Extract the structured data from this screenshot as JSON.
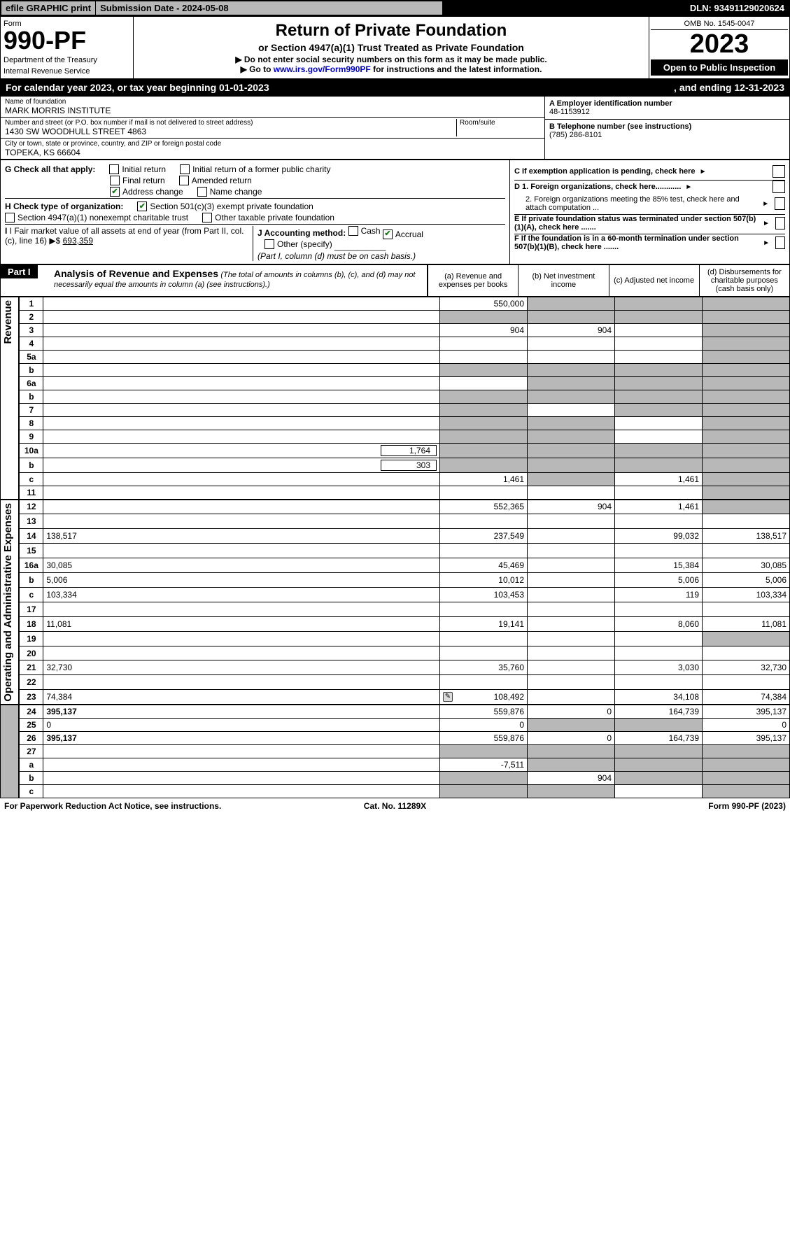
{
  "topbar": {
    "efile": "efile GRAPHIC print",
    "submission": "Submission Date - 2024-05-08",
    "dln": "DLN: 93491129020624"
  },
  "header": {
    "form_word": "Form",
    "form_no": "990-PF",
    "dept": "Department of the Treasury",
    "irs": "Internal Revenue Service",
    "title": "Return of Private Foundation",
    "subtitle1": "or Section 4947(a)(1) Trust Treated as Private Foundation",
    "subtitle2a": "▶ Do not enter social security numbers on this form as it may be made public.",
    "subtitle2b": "▶ Go to ",
    "subtitle2link": "www.irs.gov/Form990PF",
    "subtitle2c": " for instructions and the latest information.",
    "omb": "OMB No. 1545-0047",
    "year": "2023",
    "openpub": "Open to Public Inspection"
  },
  "calyear": {
    "left": "For calendar year 2023, or tax year beginning 01-01-2023",
    "right": ", and ending 12-31-2023"
  },
  "name": {
    "foundation_hdr": "Name of foundation",
    "foundation": "MARK MORRIS INSTITUTE",
    "street_hdr": "Number and street (or P.O. box number if mail is not delivered to street address)",
    "street": "1430 SW WOODHULL STREET 4863",
    "room_hdr": "Room/suite",
    "city_hdr": "City or town, state or province, country, and ZIP or foreign postal code",
    "city": "TOPEKA, KS  66604"
  },
  "right_info": {
    "a_lbl": "A Employer identification number",
    "a_val": "48-1153912",
    "b_lbl": "B Telephone number (see instructions)",
    "b_val": "(785) 286-8101",
    "c_lbl": "C If exemption application is pending, check here",
    "d1": "D 1. Foreign organizations, check here............",
    "d2": "2. Foreign organizations meeting the 85% test, check here and attach computation ...",
    "e": "E  If private foundation status was terminated under section 507(b)(1)(A), check here .......",
    "f": "F  If the foundation is in a 60-month termination under section 507(b)(1)(B), check here .......",
    "g_lbl": "G Check all that apply:",
    "g_opts": [
      "Initial return",
      "Initial return of a former public charity",
      "Final return",
      "Amended return",
      "Address change",
      "Name change"
    ],
    "h_lbl": "H Check type of organization:",
    "h_opts": [
      "Section 501(c)(3) exempt private foundation",
      "Section 4947(a)(1) nonexempt charitable trust",
      "Other taxable private foundation"
    ],
    "i_lbl": "I Fair market value of all assets at end of year (from Part II, col. (c), line 16)",
    "i_val": "693,359",
    "j_lbl": "J Accounting method:",
    "j_opts": [
      "Cash",
      "Accrual",
      "Other (specify)"
    ],
    "j_note": "(Part I, column (d) must be on cash basis.)"
  },
  "part1_hdr": {
    "part": "Part I",
    "title": "Analysis of Revenue and Expenses",
    "sub": "(The total of amounts in columns (b), (c), and (d) may not necessarily equal the amounts in column (a) (see instructions).)",
    "cola": "(a)  Revenue and expenses per books",
    "colb": "(b)  Net investment income",
    "colc": "(c)  Adjusted net income",
    "cold": "(d)  Disbursements for charitable purposes (cash basis only)"
  },
  "side_labels": {
    "rev": "Revenue",
    "exp": "Operating and Administrative Expenses"
  },
  "rows": [
    {
      "n": "1",
      "d": "",
      "a": "550,000",
      "b": "",
      "c": "",
      "shade_b": true,
      "shade_c": true,
      "shade_d": true
    },
    {
      "n": "2",
      "d": "",
      "a": "",
      "b": "",
      "c": "",
      "shade_a": true,
      "shade_b": true,
      "shade_c": true,
      "shade_d": true
    },
    {
      "n": "3",
      "d": "",
      "a": "904",
      "b": "904",
      "c": "",
      "shade_d": true
    },
    {
      "n": "4",
      "d": "",
      "a": "",
      "b": "",
      "c": "",
      "shade_d": true
    },
    {
      "n": "5a",
      "d": "",
      "a": "",
      "b": "",
      "c": "",
      "shade_d": true
    },
    {
      "n": "b",
      "d": "",
      "a": "",
      "b": "",
      "c": "",
      "shade_a": true,
      "shade_b": true,
      "shade_c": true,
      "shade_d": true
    },
    {
      "n": "6a",
      "d": "",
      "a": "",
      "b": "",
      "c": "",
      "shade_b": true,
      "shade_c": true,
      "shade_d": true
    },
    {
      "n": "b",
      "d": "",
      "a": "",
      "b": "",
      "c": "",
      "shade_a": true,
      "shade_b": true,
      "shade_c": true,
      "shade_d": true
    },
    {
      "n": "7",
      "d": "",
      "a": "",
      "b": "",
      "c": "",
      "shade_a": true,
      "shade_c": true,
      "shade_d": true
    },
    {
      "n": "8",
      "d": "",
      "a": "",
      "b": "",
      "c": "",
      "shade_a": true,
      "shade_b": true,
      "shade_d": true
    },
    {
      "n": "9",
      "d": "",
      "a": "",
      "b": "",
      "c": "",
      "shade_a": true,
      "shade_b": true,
      "shade_d": true
    },
    {
      "n": "10a",
      "d": "",
      "a": "",
      "b": "",
      "c": "",
      "ext": "1,764",
      "shade_a": true,
      "shade_b": true,
      "shade_c": true,
      "shade_d": true
    },
    {
      "n": "b",
      "d": "",
      "a": "",
      "b": "",
      "c": "",
      "ext": "303",
      "shade_a": true,
      "shade_b": true,
      "shade_c": true,
      "shade_d": true
    },
    {
      "n": "c",
      "d": "",
      "a": "1,461",
      "b": "",
      "c": "1,461",
      "shade_b": true,
      "shade_d": true
    },
    {
      "n": "11",
      "d": "",
      "a": "",
      "b": "",
      "c": "",
      "shade_d": true
    },
    {
      "n": "12",
      "d": "",
      "a": "552,365",
      "b": "904",
      "c": "1,461",
      "bold": true,
      "shade_d": true
    },
    {
      "n": "13",
      "d": "",
      "a": "",
      "b": "",
      "c": ""
    },
    {
      "n": "14",
      "d": "138,517",
      "a": "237,549",
      "b": "",
      "c": "99,032"
    },
    {
      "n": "15",
      "d": "",
      "a": "",
      "b": "",
      "c": ""
    },
    {
      "n": "16a",
      "d": "30,085",
      "a": "45,469",
      "b": "",
      "c": "15,384"
    },
    {
      "n": "b",
      "d": "5,006",
      "a": "10,012",
      "b": "",
      "c": "5,006"
    },
    {
      "n": "c",
      "d": "103,334",
      "a": "103,453",
      "b": "",
      "c": "119"
    },
    {
      "n": "17",
      "d": "",
      "a": "",
      "b": "",
      "c": ""
    },
    {
      "n": "18",
      "d": "11,081",
      "a": "19,141",
      "b": "",
      "c": "8,060"
    },
    {
      "n": "19",
      "d": "",
      "a": "",
      "b": "",
      "c": "",
      "shade_d": true
    },
    {
      "n": "20",
      "d": "",
      "a": "",
      "b": "",
      "c": ""
    },
    {
      "n": "21",
      "d": "32,730",
      "a": "35,760",
      "b": "",
      "c": "3,030"
    },
    {
      "n": "22",
      "d": "",
      "a": "",
      "b": "",
      "c": ""
    },
    {
      "n": "23",
      "d": "74,384",
      "a": "108,492",
      "b": "",
      "c": "34,108",
      "icon": true
    },
    {
      "n": "24",
      "d": "395,137",
      "a": "559,876",
      "b": "0",
      "c": "164,739",
      "bold": true
    },
    {
      "n": "25",
      "d": "0",
      "a": "0",
      "b": "",
      "c": "",
      "shade_b": true,
      "shade_c": true
    },
    {
      "n": "26",
      "d": "395,137",
      "a": "559,876",
      "b": "0",
      "c": "164,739",
      "bold": true
    },
    {
      "n": "27",
      "d": "",
      "a": "",
      "b": "",
      "c": "",
      "shade_a": true,
      "shade_b": true,
      "shade_c": true,
      "shade_d": true
    },
    {
      "n": "a",
      "d": "",
      "a": "-7,511",
      "b": "",
      "c": "",
      "bold": true,
      "shade_b": true,
      "shade_c": true,
      "shade_d": true
    },
    {
      "n": "b",
      "d": "",
      "a": "",
      "b": "904",
      "c": "",
      "bold": true,
      "shade_a": true,
      "shade_c": true,
      "shade_d": true
    },
    {
      "n": "c",
      "d": "",
      "a": "",
      "b": "",
      "c": "",
      "bold": true,
      "shade_a": true,
      "shade_b": true,
      "shade_d": true
    }
  ],
  "footer": {
    "left": "For Paperwork Reduction Act Notice, see instructions.",
    "mid": "Cat. No. 11289X",
    "right": "Form 990-PF (2023)"
  }
}
